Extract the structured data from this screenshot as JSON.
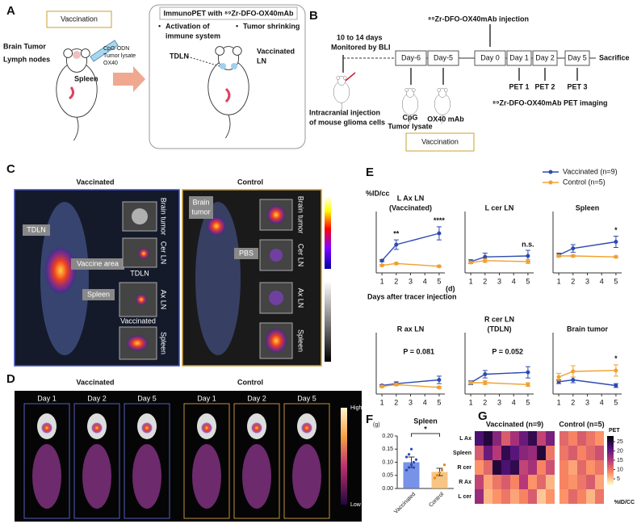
{
  "panel_a": {
    "label": "A",
    "vaccination": "Vaccination",
    "brain_tumor": "Brain Tumor",
    "lymph_nodes": "Lymph nodes",
    "adjuvants": [
      "CpG-ODN",
      "Tumor lysate",
      "OX40"
    ],
    "spleen": "Spleen",
    "immunopet_title": "ImmunoPET with ⁸⁹Zr-DFO-OX40mAb",
    "bullets": [
      [
        "Activation of",
        "immune system"
      ],
      [
        "Tumor shrinking"
      ]
    ],
    "tdln": "TDLN",
    "vaccinated_ln": [
      "Vaccinated",
      "LN"
    ]
  },
  "panel_b": {
    "label": "B",
    "injection": "⁸⁹Zr-DFO-OX40mAb injection",
    "monitor": [
      "10 to 14 days",
      "Monitored by BLI"
    ],
    "days": [
      "Day-6",
      "Day-5",
      "Day 0",
      "Day 1",
      "Day 2",
      "Day 5"
    ],
    "sacrifice": "Sacrifice",
    "pet": [
      "PET 1",
      "PET 2",
      "PET 3"
    ],
    "imaging": "⁸⁹Zr-DFO-OX40mAb PET imaging",
    "intracranial": [
      "Intracranial injection",
      "of mouse glioma cells"
    ],
    "cpg": [
      "CpG",
      "Tumor lysate"
    ],
    "ox40": "OX40 mAb",
    "vaccination": "Vaccination"
  },
  "panel_c": {
    "label": "C",
    "groups": [
      "Vaccinated",
      "Control"
    ],
    "vac_labels": {
      "tdln": "TDLN",
      "vaccine_area": "Vaccine area",
      "spleen": "Spleen"
    },
    "vac_insets": [
      "Brain tumor",
      "Cer LN",
      "Ax LN",
      "Spleen"
    ],
    "vac_inset_notes": [
      "TDLN",
      "Vaccinated"
    ],
    "ctrl_labels": {
      "brain_tumor": [
        "Brain",
        "tumor"
      ],
      "pbs": "PBS"
    },
    "ctrl_insets": [
      "Brain tumor",
      "Cer LN",
      "Ax LN",
      "Spleen"
    ],
    "pet_bar": {
      "name": "PET",
      "unit": "[%ID/cc]",
      "max": 15,
      "min": 0
    },
    "ct_bar": {
      "name": "CT",
      "unit": "[HU]",
      "max": 4000,
      "min": -100
    }
  },
  "panel_d": {
    "label": "D",
    "groups": [
      "Vaccinated",
      "Control"
    ],
    "days": [
      "Day 1",
      "Day 2",
      "Day 5"
    ],
    "scale": [
      "High",
      "Low"
    ]
  },
  "panel_e": {
    "label": "E",
    "legend": [
      {
        "name": "Vaccinated (n=9)",
        "color": "#2c4bb3"
      },
      {
        "name": "Control (n=5)",
        "color": "#f0a030"
      }
    ],
    "y_label": "%ID/cc",
    "x_label": "Days after tracer injection",
    "x_unit": "(d)"
  },
  "chart_data": [
    {
      "type": "line",
      "title": [
        "L Ax LN",
        "(Vaccinated)"
      ],
      "x": [
        1,
        2,
        5
      ],
      "xlim": [
        0.6,
        5.4
      ],
      "xticks": [
        1,
        2,
        3,
        4,
        5
      ],
      "ylim": [
        0,
        30
      ],
      "series": [
        {
          "values": [
            6.5,
            15,
            21
          ],
          "errors": [
            0.5,
            2.5,
            3.5
          ]
        },
        {
          "values": [
            4,
            5,
            3.5
          ],
          "errors": [
            0.5,
            0.5,
            0.5
          ]
        }
      ],
      "annotations": [
        {
          "x": 2,
          "text": "**"
        },
        {
          "x": 5,
          "text": "****"
        }
      ]
    },
    {
      "type": "line",
      "title": [
        "L cer LN"
      ],
      "x": [
        1,
        2,
        5
      ],
      "xlim": [
        0.6,
        5.4
      ],
      "xticks": [
        1,
        2,
        3,
        4,
        5
      ],
      "ylim": [
        0,
        30
      ],
      "series": [
        {
          "values": [
            6,
            8.5,
            9
          ],
          "errors": [
            1,
            2,
            3
          ]
        },
        {
          "values": [
            5.5,
            6.5,
            6
          ],
          "errors": [
            0.5,
            1,
            1
          ]
        }
      ],
      "annotations": [
        {
          "x": 5,
          "text": "n.s."
        }
      ]
    },
    {
      "type": "line",
      "title": [
        "Spleen"
      ],
      "x": [
        1,
        2,
        5
      ],
      "xlim": [
        0.6,
        5.4
      ],
      "xticks": [
        1,
        2,
        3,
        4,
        5
      ],
      "ylim": [
        0,
        30
      ],
      "series": [
        {
          "values": [
            9.5,
            13,
            16.5
          ],
          "errors": [
            1,
            2,
            3
          ]
        },
        {
          "values": [
            9,
            9,
            8.5
          ],
          "errors": [
            0.5,
            0.5,
            0.5
          ]
        }
      ],
      "annotations": [
        {
          "x": 5,
          "text": "*"
        }
      ]
    },
    {
      "type": "line",
      "title": [
        "R ax LN"
      ],
      "x": [
        1,
        2,
        5
      ],
      "xlim": [
        0.6,
        5.4
      ],
      "xticks": [
        1,
        2,
        3,
        4,
        5
      ],
      "ylim": [
        0,
        30
      ],
      "series": [
        {
          "values": [
            4.5,
            5.5,
            7.5
          ],
          "errors": [
            0.5,
            1,
            2
          ]
        },
        {
          "values": [
            4,
            5,
            3.5
          ],
          "errors": [
            0.5,
            0.5,
            0.5
          ]
        }
      ],
      "note": "P = 0.081"
    },
    {
      "type": "line",
      "title": [
        "R cer LN",
        "(TDLN)"
      ],
      "x": [
        1,
        2,
        5
      ],
      "xlim": [
        0.6,
        5.4
      ],
      "xticks": [
        1,
        2,
        3,
        4,
        5
      ],
      "ylim": [
        0,
        30
      ],
      "series": [
        {
          "values": [
            6,
            10.5,
            11.5
          ],
          "errors": [
            1,
            2,
            3
          ]
        },
        {
          "values": [
            6,
            6,
            5
          ],
          "errors": [
            0.5,
            1,
            1
          ]
        }
      ],
      "note": "P = 0.052"
    },
    {
      "type": "line",
      "title": [
        "Brain tumor"
      ],
      "x": [
        1,
        2,
        5
      ],
      "xlim": [
        0.6,
        5.4
      ],
      "xticks": [
        1,
        2,
        3,
        4,
        5
      ],
      "ylim": [
        0,
        30
      ],
      "series": [
        {
          "values": [
            6.5,
            7.5,
            4.5
          ],
          "errors": [
            1,
            1.5,
            1
          ]
        },
        {
          "values": [
            9,
            12,
            12.5
          ],
          "errors": [
            2,
            3,
            3
          ]
        }
      ],
      "annotations": [
        {
          "x": 5,
          "text": "*"
        }
      ]
    },
    {
      "type": "bar",
      "label": "F",
      "title": "Spleen",
      "y_unit": "(g)",
      "categories": [
        "Vaccinated",
        "Control"
      ],
      "values": [
        0.1,
        0.063
      ],
      "errors": [
        0.02,
        0.014
      ],
      "colors": [
        "#5577e0",
        "#f5b565"
      ],
      "points": [
        [
          0.07,
          0.08,
          0.09,
          0.1,
          0.11,
          0.12,
          0.13,
          0.15,
          0.08
        ],
        [
          0.04,
          0.05,
          0.06,
          0.07,
          0.09
        ]
      ],
      "ylim": [
        0,
        0.2
      ],
      "yticks": [
        {
          "value": 0,
          "label": "0.00"
        },
        {
          "value": 0.05,
          "label": "0.05"
        },
        {
          "value": 0.1,
          "label": "0.10"
        },
        {
          "value": 0.15,
          "label": "0.15"
        },
        {
          "value": 0.2,
          "label": "0.20"
        }
      ],
      "significance": "*"
    },
    {
      "type": "heatmap",
      "label": "G",
      "rows": [
        "L Ax",
        "Spleen",
        "R cer",
        "R Ax",
        "L cer"
      ],
      "groups": [
        {
          "name": "Vaccinated (n=9)",
          "values": [
            [
              22,
              25,
              18,
              12,
              16,
              20,
              24,
              14,
              19
            ],
            [
              12,
              20,
              15,
              24,
              21,
              18,
              17,
              25,
              10
            ],
            [
              8,
              11,
              25,
              22,
              24,
              14,
              16,
              9,
              13
            ],
            [
              14,
              7,
              10,
              12,
              9,
              15,
              8,
              11,
              6
            ],
            [
              17,
              6,
              8,
              10,
              7,
              9,
              12,
              5,
              8
            ]
          ]
        },
        {
          "name": "Control (n=5)",
          "values": [
            [
              11,
              9,
              12,
              10,
              8
            ],
            [
              10,
              12,
              9,
              11,
              13
            ],
            [
              9,
              7,
              11,
              8,
              10
            ],
            [
              9,
              8,
              10,
              12,
              7
            ],
            [
              8,
              11,
              9,
              6,
              10
            ]
          ]
        }
      ],
      "colorbar": {
        "title": "PET",
        "unit": "%ID/CC",
        "ticks": [
          5,
          10,
          15,
          20,
          25
        ],
        "clim": [
          2,
          28
        ]
      }
    }
  ]
}
